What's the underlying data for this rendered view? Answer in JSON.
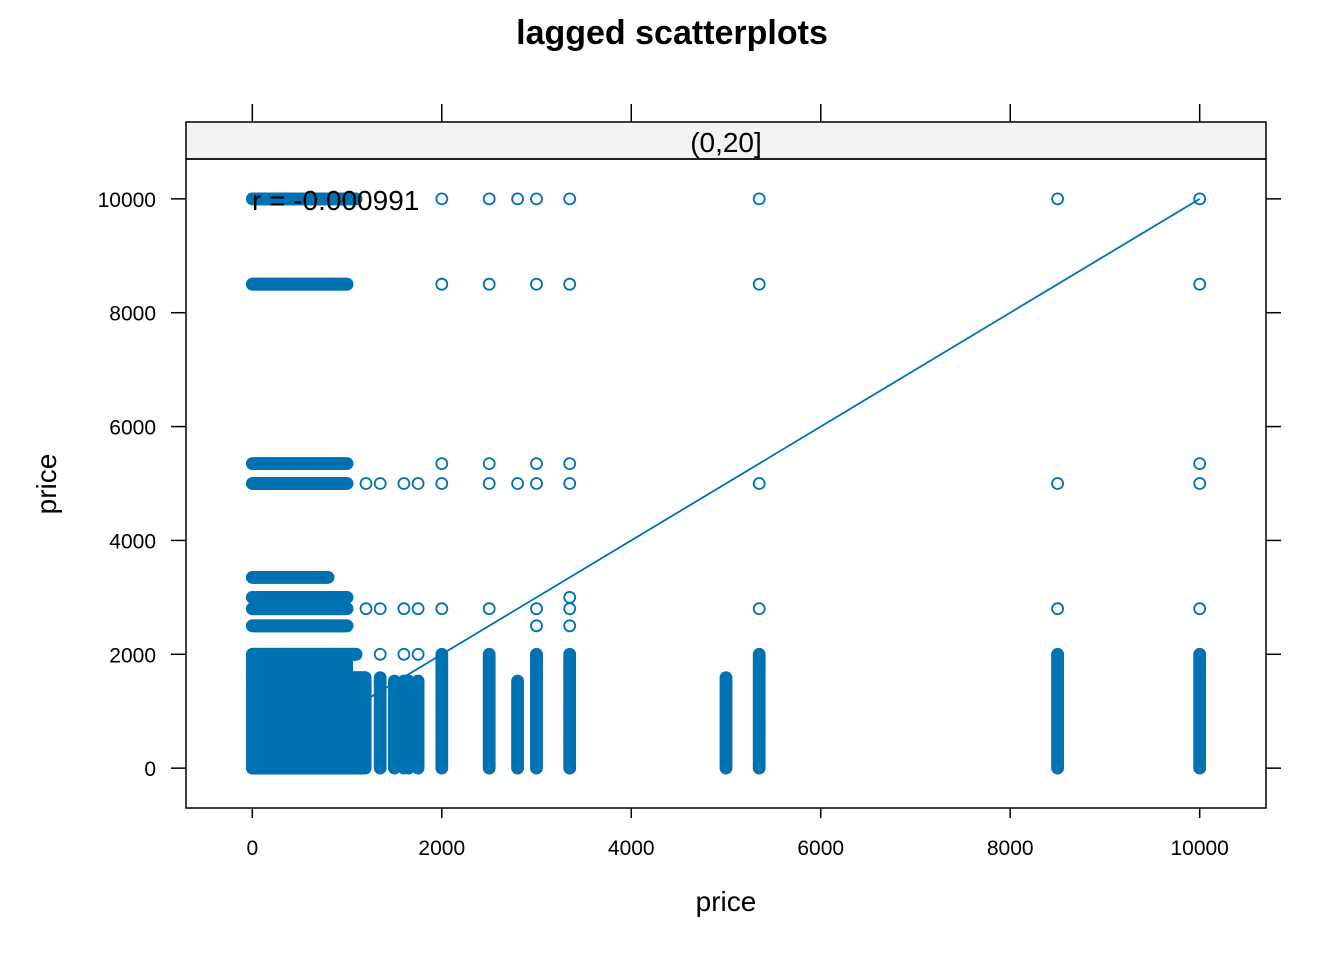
{
  "chart_data": {
    "type": "scatter",
    "title": "lagged scatterplots",
    "xlabel": "price",
    "ylabel": "price",
    "panel": "(0,20]",
    "annotation": "r = -0.000991",
    "xlim": [
      -700,
      10700
    ],
    "ylim": [
      -700,
      10700
    ],
    "xticks": [
      0,
      2000,
      4000,
      6000,
      8000,
      10000
    ],
    "yticks": [
      0,
      2000,
      4000,
      6000,
      8000,
      10000
    ],
    "grid": false,
    "color": "#0072B2",
    "reference_line": [
      [
        0,
        0
      ],
      [
        10000,
        10000
      ]
    ],
    "column_groups": [
      {
        "x": [
          0,
          1000
        ],
        "top": 2000,
        "bottom": 0,
        "fill": true
      },
      {
        "x": [
          1000,
          1200
        ],
        "top": 1600,
        "bottom": 0,
        "fill": true
      },
      {
        "x": [
          1350
        ],
        "top": 1600,
        "bottom": 0
      },
      {
        "x": [
          1500,
          1600,
          1650,
          1750
        ],
        "top": 1550,
        "bottom": 0
      },
      {
        "x": [
          2000
        ],
        "top": 2000,
        "bottom": 0
      },
      {
        "x": [
          2500
        ],
        "top": 2000,
        "bottom": 0
      },
      {
        "x": [
          2800
        ],
        "top": 1550,
        "bottom": 0
      },
      {
        "x": [
          3000
        ],
        "top": 2000,
        "bottom": 0
      },
      {
        "x": [
          3350
        ],
        "top": 2000,
        "bottom": 0
      },
      {
        "x": [
          5000
        ],
        "top": 1600,
        "bottom": 0
      },
      {
        "x": [
          5350
        ],
        "top": 2000,
        "bottom": 0
      },
      {
        "x": [
          8500
        ],
        "top": 2000,
        "bottom": 0
      },
      {
        "x": [
          10000
        ],
        "top": 2000,
        "bottom": 0
      }
    ],
    "row_groups": [
      {
        "y": 10000,
        "x": [
          0,
          1100
        ],
        "extra": [
          2000,
          2500,
          2800,
          3000,
          3350,
          5350,
          8500,
          10000
        ]
      },
      {
        "y": 8500,
        "x": [
          0,
          1000
        ],
        "extra": [
          2000,
          2500,
          3000,
          3350,
          5350,
          10000
        ]
      },
      {
        "y": 5350,
        "x": [
          0,
          1000
        ],
        "extra": [
          2000,
          2500,
          3000,
          3350,
          10000
        ]
      },
      {
        "y": 5000,
        "x": [
          0,
          1000
        ],
        "extra": [
          1200,
          1350,
          1600,
          1750,
          2000,
          2500,
          2800,
          3000,
          3350,
          5350,
          8500,
          10000
        ]
      },
      {
        "y": 3350,
        "x": [
          0,
          800
        ],
        "extra": []
      },
      {
        "y": 3000,
        "x": [
          0,
          1000
        ],
        "extra": [
          3350
        ]
      },
      {
        "y": 2800,
        "x": [
          0,
          1000
        ],
        "extra": [
          1200,
          1350,
          1600,
          1750,
          2000,
          2500,
          3000,
          3350,
          5350,
          8500,
          10000
        ]
      },
      {
        "y": 2500,
        "x": [
          0,
          1000
        ],
        "extra": [
          3000,
          3350
        ]
      },
      {
        "y": 2000,
        "x": [
          0,
          1100
        ],
        "extra": [
          1350,
          1600,
          1750,
          2000,
          2500,
          3000,
          3350,
          5350,
          8500,
          10000
        ]
      }
    ]
  }
}
